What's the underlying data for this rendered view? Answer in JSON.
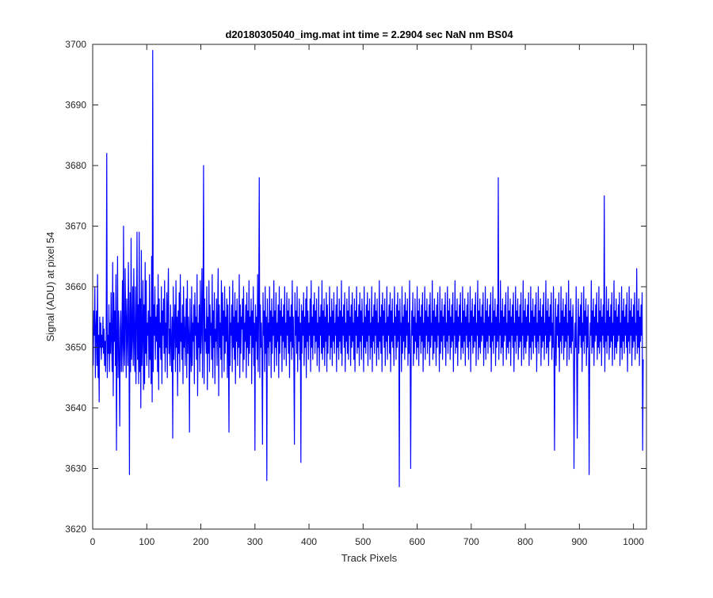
{
  "chart_data": {
    "type": "line",
    "title": "d20180305040_img.mat int time = 2.2904 sec  NaN nm BS04",
    "xlabel": "Track Pixels",
    "ylabel": "Signal (ADU) at pixel 54",
    "xlim": [
      0,
      1024
    ],
    "ylim": [
      3620,
      3700
    ],
    "xticks": [
      0,
      100,
      200,
      300,
      400,
      500,
      600,
      700,
      800,
      900,
      1000
    ],
    "yticks": [
      3620,
      3630,
      3640,
      3650,
      3660,
      3670,
      3680,
      3690,
      3700
    ],
    "grid": false,
    "line_color": "#0000ff",
    "series": [
      {
        "n_points": 1024,
        "x_start": 1,
        "x_step": 1,
        "values": [
          3647,
          3656,
          3652,
          3660,
          3645,
          3653,
          3656,
          3647,
          3662,
          3645,
          3652,
          3641,
          3655,
          3650,
          3654,
          3648,
          3652,
          3650,
          3655,
          3649,
          3653,
          3647,
          3651,
          3646,
          3653,
          3682,
          3645,
          3652,
          3649,
          3657,
          3646,
          3654,
          3649,
          3659,
          3651,
          3646,
          3664,
          3642,
          3659,
          3651,
          3656,
          3647,
          3662,
          3633,
          3651,
          3665,
          3645,
          3656,
          3649,
          3637,
          3653,
          3656,
          3646,
          3651,
          3661,
          3646,
          3670,
          3650,
          3647,
          3663,
          3655,
          3645,
          3658,
          3652,
          3647,
          3664,
          3655,
          3629,
          3659,
          3646,
          3668,
          3648,
          3652,
          3660,
          3647,
          3663,
          3651,
          3646,
          3660,
          3644,
          3653,
          3669,
          3648,
          3657,
          3644,
          3669,
          3646,
          3658,
          3640,
          3666,
          3647,
          3652,
          3661,
          3643,
          3657,
          3644,
          3664,
          3649,
          3661,
          3647,
          3654,
          3652,
          3656,
          3645,
          3662,
          3648,
          3655,
          3644,
          3665,
          3641,
          3699,
          3646,
          3657,
          3652,
          3660,
          3648,
          3655,
          3651,
          3657,
          3646,
          3662,
          3643,
          3658,
          3650,
          3654,
          3648,
          3660,
          3644,
          3656,
          3652,
          3658,
          3649,
          3661,
          3646,
          3654,
          3650,
          3659,
          3645,
          3657,
          3663,
          3649,
          3653,
          3647,
          3657,
          3651,
          3646,
          3655,
          3635,
          3660,
          3648,
          3653,
          3657,
          3646,
          3661,
          3650,
          3655,
          3642,
          3656,
          3649,
          3659,
          3646,
          3662,
          3651,
          3654,
          3648,
          3657,
          3644,
          3660,
          3650,
          3655,
          3647,
          3653,
          3658,
          3645,
          3661,
          3649,
          3655,
          3652,
          3636,
          3658,
          3650,
          3646,
          3660,
          3647,
          3654,
          3651,
          3657,
          3644,
          3659,
          3652,
          3655,
          3648,
          3662,
          3642,
          3654,
          3650,
          3657,
          3646,
          3661,
          3649,
          3653,
          3663,
          3645,
          3656,
          3680,
          3644,
          3658,
          3651,
          3653,
          3649,
          3660,
          3643,
          3655,
          3649,
          3661,
          3646,
          3657,
          3652,
          3654,
          3648,
          3662,
          3645,
          3656,
          3650,
          3659,
          3644,
          3653,
          3651,
          3658,
          3647,
          3655,
          3663,
          3642,
          3657,
          3650,
          3654,
          3648,
          3661,
          3645,
          3659,
          3652,
          3656,
          3646,
          3660,
          3649,
          3655,
          3651,
          3658,
          3645,
          3657,
          3649,
          3636,
          3660,
          3647,
          3654,
          3652,
          3657,
          3646,
          3661,
          3650,
          3655,
          3648,
          3659,
          3644,
          3656,
          3651,
          3658,
          3647,
          3654,
          3650,
          3662,
          3645,
          3657,
          3649,
          3655,
          3653,
          3658,
          3646,
          3660,
          3648,
          3654,
          3651,
          3657,
          3645,
          3659,
          3650,
          3656,
          3647,
          3661,
          3649,
          3655,
          3652,
          3658,
          3644,
          3656,
          3650,
          3660,
          3647,
          3654,
          3633,
          3657,
          3651,
          3655,
          3648,
          3662,
          3646,
          3656,
          3678,
          3645,
          3657,
          3650,
          3654,
          3648,
          3634,
          3659,
          3652,
          3656,
          3646,
          3660,
          3649,
          3655,
          3628,
          3658,
          3650,
          3654,
          3647,
          3660,
          3651,
          3656,
          3645,
          3658,
          3649,
          3655,
          3652,
          3661,
          3646,
          3656,
          3650,
          3659,
          3647,
          3654,
          3651,
          3657,
          3645,
          3660,
          3649,
          3656,
          3652,
          3658,
          3646,
          3655,
          3651,
          3657,
          3648,
          3660,
          3650,
          3654,
          3647,
          3659,
          3652,
          3656,
          3649,
          3658,
          3645,
          3655,
          3651,
          3657,
          3648,
          3661,
          3650,
          3655,
          3647,
          3634,
          3659,
          3652,
          3656,
          3649,
          3660,
          3646,
          3655,
          3651,
          3658,
          3648,
          3654,
          3631,
          3657,
          3649,
          3656,
          3652,
          3659,
          3647,
          3655,
          3650,
          3658,
          3645,
          3660,
          3651,
          3656,
          3648,
          3654,
          3652,
          3658,
          3646,
          3661,
          3650,
          3655,
          3648,
          3657,
          3652,
          3659,
          3649,
          3656,
          3651,
          3658,
          3647,
          3654,
          3650,
          3660,
          3646,
          3655,
          3652,
          3657,
          3649,
          3661,
          3648,
          3656,
          3650,
          3658,
          3647,
          3655,
          3651,
          3659,
          3646,
          3657,
          3649,
          3654,
          3652,
          3660,
          3648,
          3655,
          3650,
          3658,
          3647,
          3656,
          3651,
          3659,
          3649,
          3654,
          3652,
          3657,
          3646,
          3660,
          3650,
          3655,
          3648,
          3658,
          3651,
          3656,
          3649,
          3661,
          3647,
          3655,
          3652,
          3657,
          3650,
          3659,
          3646,
          3654,
          3651,
          3658,
          3649,
          3656,
          3648,
          3660,
          3652,
          3655,
          3647,
          3657,
          3650,
          3659,
          3651,
          3654,
          3648,
          3658,
          3646,
          3656,
          3652,
          3660,
          3649,
          3655,
          3650,
          3657,
          3647,
          3659,
          3651,
          3656,
          3648,
          3658,
          3652,
          3654,
          3646,
          3660,
          3650,
          3655,
          3649,
          3657,
          3651,
          3659,
          3647,
          3656,
          3652,
          3658,
          3648,
          3654,
          3650,
          3660,
          3646,
          3655,
          3651,
          3657,
          3649,
          3659,
          3652,
          3656,
          3647,
          3658,
          3650,
          3654,
          3648,
          3661,
          3651,
          3655,
          3649,
          3657,
          3646,
          3659,
          3652,
          3656,
          3650,
          3658,
          3647,
          3654,
          3651,
          3660,
          3648,
          3655,
          3652,
          3657,
          3649,
          3659,
          3646,
          3656,
          3651,
          3658,
          3650,
          3654,
          3647,
          3660,
          3652,
          3655,
          3648,
          3657,
          3650,
          3659,
          3651,
          3656,
          3627,
          3658,
          3652,
          3654,
          3646,
          3660,
          3649,
          3655,
          3651,
          3657,
          3648,
          3659,
          3650,
          3656,
          3652,
          3658,
          3647,
          3654,
          3649,
          3661,
          3651,
          3630,
          3650,
          3656,
          3652,
          3659,
          3647,
          3655,
          3649,
          3658,
          3651,
          3654,
          3648,
          3660,
          3650,
          3656,
          3647,
          3658,
          3652,
          3655,
          3649,
          3657,
          3651,
          3659,
          3646,
          3654,
          3650,
          3660,
          3648,
          3656,
          3652,
          3658,
          3649,
          3655,
          3651,
          3657,
          3647,
          3659,
          3650,
          3654,
          3652,
          3661,
          3648,
          3656,
          3649,
          3658,
          3651,
          3655,
          3647,
          3657,
          3650,
          3659,
          3652,
          3654,
          3646,
          3660,
          3649,
          3656,
          3651,
          3658,
          3648,
          3655,
          3652,
          3657,
          3650,
          3659,
          3647,
          3654,
          3651,
          3660,
          3649,
          3656,
          3652,
          3658,
          3648,
          3655,
          3650,
          3657,
          3651,
          3659,
          3646,
          3654,
          3652,
          3661,
          3649,
          3656,
          3650,
          3658,
          3647,
          3655,
          3651,
          3657,
          3652,
          3659,
          3648,
          3654,
          3650,
          3660,
          3649,
          3656,
          3651,
          3658,
          3647,
          3655,
          3652,
          3657,
          3650,
          3659,
          3648,
          3654,
          3651,
          3660,
          3646,
          3656,
          3652,
          3658,
          3649,
          3655,
          3650,
          3657,
          3651,
          3659,
          3647,
          3654,
          3652,
          3661,
          3648,
          3656,
          3650,
          3658,
          3649,
          3655,
          3651,
          3657,
          3652,
          3659,
          3647,
          3654,
          3650,
          3660,
          3648,
          3656,
          3651,
          3658,
          3649,
          3655,
          3652,
          3657,
          3650,
          3659,
          3646,
          3654,
          3651,
          3660,
          3649,
          3656,
          3652,
          3658,
          3647,
          3655,
          3650,
          3657,
          3651,
          3678,
          3648,
          3654,
          3652,
          3661,
          3649,
          3656,
          3650,
          3658,
          3647,
          3655,
          3651,
          3657,
          3652,
          3659,
          3648,
          3654,
          3650,
          3660,
          3649,
          3656,
          3651,
          3658,
          3647,
          3655,
          3652,
          3657,
          3650,
          3659,
          3646,
          3654,
          3651,
          3660,
          3649,
          3656,
          3652,
          3658,
          3648,
          3655,
          3650,
          3657,
          3651,
          3659,
          3647,
          3654,
          3652,
          3661,
          3648,
          3656,
          3650,
          3658,
          3649,
          3655,
          3651,
          3657,
          3652,
          3659,
          3647,
          3654,
          3650,
          3660,
          3648,
          3656,
          3651,
          3658,
          3649,
          3655,
          3652,
          3657,
          3650,
          3659,
          3646,
          3654,
          3651,
          3660,
          3649,
          3656,
          3652,
          3658,
          3647,
          3655,
          3650,
          3657,
          3651,
          3659,
          3648,
          3654,
          3652,
          3661,
          3649,
          3656,
          3650,
          3658,
          3647,
          3655,
          3651,
          3657,
          3652,
          3659,
          3648,
          3654,
          3650,
          3660,
          3649,
          3633,
          3651,
          3658,
          3647,
          3655,
          3652,
          3657,
          3650,
          3659,
          3646,
          3654,
          3651,
          3660,
          3649,
          3656,
          3652,
          3658,
          3648,
          3655,
          3650,
          3657,
          3651,
          3659,
          3647,
          3654,
          3652,
          3661,
          3648,
          3656,
          3650,
          3658,
          3649,
          3655,
          3651,
          3657,
          3652,
          3630,
          3647,
          3654,
          3650,
          3660,
          3648,
          3635,
          3651,
          3658,
          3649,
          3655,
          3652,
          3657,
          3650,
          3659,
          3646,
          3654,
          3651,
          3660,
          3649,
          3656,
          3652,
          3658,
          3647,
          3655,
          3650,
          3657,
          3651,
          3629,
          3648,
          3654,
          3652,
          3661,
          3649,
          3656,
          3650,
          3658,
          3647,
          3655,
          3651,
          3657,
          3652,
          3659,
          3648,
          3654,
          3650,
          3660,
          3649,
          3656,
          3651,
          3658,
          3647,
          3655,
          3652,
          3657,
          3650,
          3675,
          3646,
          3654,
          3651,
          3660,
          3649,
          3656,
          3652,
          3658,
          3648,
          3655,
          3650,
          3657,
          3651,
          3659,
          3647,
          3654,
          3652,
          3661,
          3648,
          3656,
          3650,
          3658,
          3649,
          3655,
          3651,
          3657,
          3652,
          3659,
          3647,
          3654,
          3650,
          3660,
          3648,
          3656,
          3651,
          3658,
          3649,
          3655,
          3652,
          3657,
          3650,
          3659,
          3646,
          3654,
          3651,
          3660,
          3649,
          3656,
          3652,
          3658,
          3647,
          3655,
          3650,
          3657,
          3651,
          3659,
          3648,
          3654,
          3652,
          3663,
          3649,
          3656,
          3650,
          3658,
          3647,
          3655,
          3651,
          3657,
          3652,
          3659,
          3633,
          3648
        ]
      }
    ]
  }
}
